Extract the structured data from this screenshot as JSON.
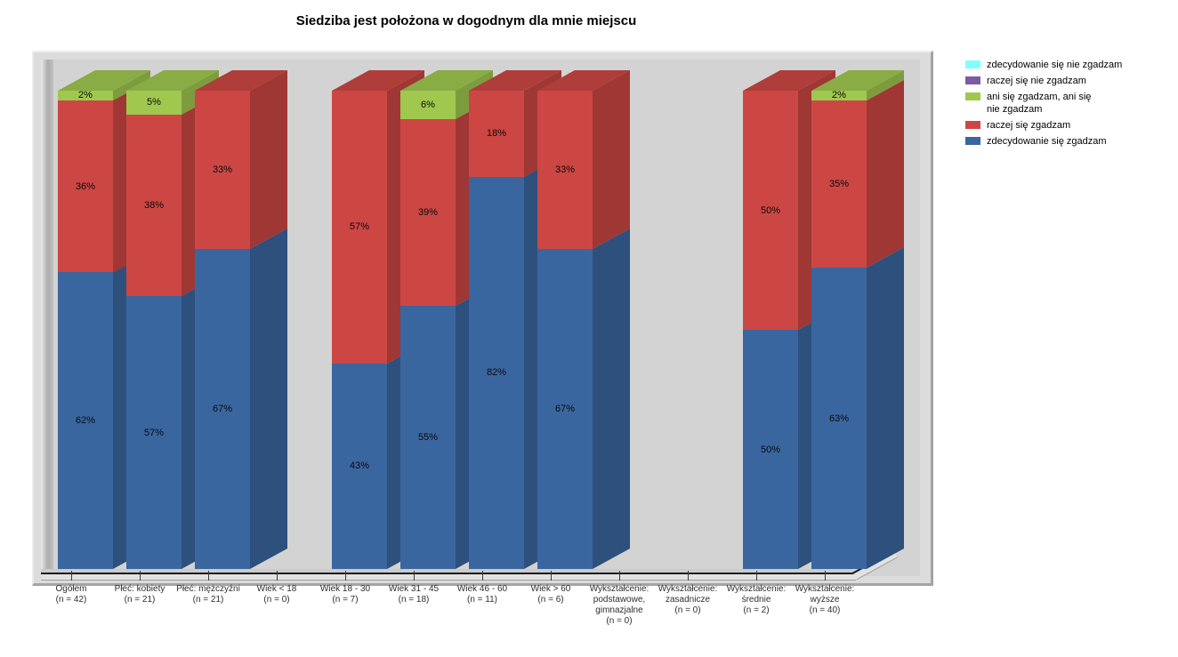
{
  "title": "Siedziba jest położona w dogodnym dla mnie miejscu",
  "legend": [
    {
      "label": "zdecydowanie się nie zgadzam",
      "color": "#80FFFF"
    },
    {
      "label": "raczej się nie zgadzam",
      "color": "#7A5BA5"
    },
    {
      "label": "ani się zgadzam, ani się\nnie zgadzam",
      "color": "#A0C84F"
    },
    {
      "label": "raczej się zgadzam",
      "color": "#CC4744"
    },
    {
      "label": "zdecydowanie się zgadzam",
      "color": "#3A66A0"
    }
  ],
  "chart_data": {
    "type": "bar",
    "subtype": "3d-stacked-percentage",
    "unit": "%",
    "ylim": [
      0,
      100
    ],
    "grid": false,
    "legend_position": "top-right",
    "stacking": "bottom-to-top",
    "categories": [
      {
        "lines": [
          "Ogółem",
          "(n = 42)"
        ]
      },
      {
        "lines": [
          "Płeć: kobiety",
          "(n = 21)"
        ]
      },
      {
        "lines": [
          "Płeć: mężczyźni",
          "(n = 21)"
        ]
      },
      {
        "lines": [
          "Wiek < 18",
          "(n = 0)"
        ]
      },
      {
        "lines": [
          "Wiek 18 - 30",
          "(n = 7)"
        ]
      },
      {
        "lines": [
          "Wiek 31 - 45",
          "(n = 18)"
        ]
      },
      {
        "lines": [
          "Wiek 46 - 60",
          "(n = 11)"
        ]
      },
      {
        "lines": [
          "Wiek > 60",
          "(n = 6)"
        ]
      },
      {
        "lines": [
          "Wykształcenie:",
          "podstawowe,",
          "gimnazjalne",
          "(n = 0)"
        ]
      },
      {
        "lines": [
          "Wykształcenie:",
          "zasadnicze",
          "(n = 0)"
        ]
      },
      {
        "lines": [
          "Wykształcenie:",
          "średnie",
          "(n = 2)"
        ]
      },
      {
        "lines": [
          "Wykształcenie:",
          "wyższe",
          "(n = 40)"
        ]
      }
    ],
    "series": [
      {
        "name": "zdecydowanie się zgadzam",
        "color": "#3A66A0",
        "values": [
          62,
          57,
          67,
          null,
          43,
          55,
          82,
          67,
          null,
          null,
          50,
          63
        ]
      },
      {
        "name": "raczej się zgadzam",
        "color": "#CC4744",
        "values": [
          36,
          38,
          33,
          null,
          57,
          39,
          18,
          33,
          null,
          null,
          50,
          35
        ]
      },
      {
        "name": "ani się zgadzam, ani się nie zgadzam",
        "color": "#A0C84F",
        "values": [
          2,
          5,
          0,
          null,
          0,
          6,
          0,
          0,
          null,
          null,
          0,
          2
        ]
      },
      {
        "name": "raczej się nie zgadzam",
        "color": "#7A5BA5",
        "values": [
          0,
          0,
          0,
          null,
          0,
          0,
          0,
          0,
          null,
          null,
          0,
          0
        ]
      },
      {
        "name": "zdecydowanie się nie zgadzam",
        "color": "#80FFFF",
        "values": [
          0,
          0,
          0,
          null,
          0,
          0,
          0,
          0,
          null,
          null,
          0,
          0
        ]
      }
    ]
  },
  "colors": {
    "wall": "#D3D3D3",
    "frame": "#DCDCDC",
    "page_background": "#FFFFFF"
  }
}
